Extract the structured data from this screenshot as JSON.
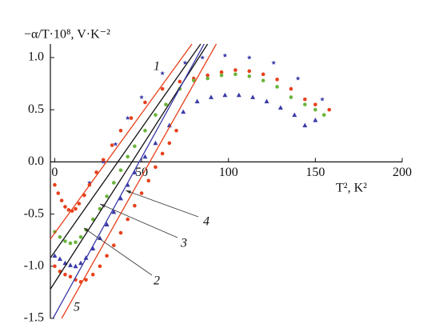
{
  "chart_data": {
    "type": "scatter",
    "y_label": "−α/T·10⁸, V·K⁻²",
    "x_label": "T², K²",
    "xlim": [
      -2.5,
      200
    ],
    "xticks": [
      0,
      50,
      100,
      150,
      200
    ],
    "ylim": [
      -1.5,
      1.13
    ],
    "yticks": [
      -1.5,
      {
        "value": -1,
        "label": "-1.0"
      },
      -0.5,
      {
        "value": 0,
        "label": "0.0"
      },
      0.5,
      {
        "value": 1,
        "label": "1.0"
      }
    ],
    "series": [
      {
        "marker": "star",
        "color": "#3a3aa8",
        "x": [
          20,
          28,
          35,
          42,
          50,
          62,
          75,
          85,
          98,
          112,
          126,
          140,
          154
        ],
        "values": [
          -0.2,
          0.0,
          0.17,
          0.42,
          0.62,
          0.85,
          0.95,
          1.0,
          1.02,
          1.0,
          0.95,
          0.8,
          0.6
        ]
      },
      {
        "marker": "circle",
        "color": "#e8401c",
        "x": [
          0,
          2,
          4,
          6,
          8,
          10,
          12,
          14,
          17,
          20,
          24,
          28,
          33,
          38,
          44,
          52,
          62,
          72,
          80,
          88,
          96,
          104,
          112,
          120,
          128,
          136,
          144,
          150,
          158
        ],
        "values": [
          -0.22,
          -0.3,
          -0.37,
          -0.43,
          -0.46,
          -0.47,
          -0.45,
          -0.4,
          -0.32,
          -0.22,
          -0.1,
          0.02,
          0.16,
          0.3,
          0.42,
          0.57,
          0.7,
          0.77,
          0.8,
          0.83,
          0.86,
          0.88,
          0.87,
          0.84,
          0.79,
          0.7,
          0.6,
          0.55,
          0.5
        ]
      },
      {
        "marker": "circle",
        "color": "#6ab43c",
        "x": [
          0,
          3,
          6,
          9,
          12,
          15,
          18,
          22,
          26,
          30,
          34,
          38,
          42,
          46,
          52,
          58,
          64,
          72,
          80,
          88,
          96,
          104,
          112,
          120,
          128,
          136,
          144,
          150,
          155
        ],
        "values": [
          -0.67,
          -0.72,
          -0.76,
          -0.78,
          -0.77,
          -0.72,
          -0.65,
          -0.55,
          -0.45,
          -0.33,
          -0.2,
          -0.08,
          0.05,
          0.15,
          0.3,
          0.45,
          0.55,
          0.7,
          0.78,
          0.8,
          0.83,
          0.84,
          0.82,
          0.78,
          0.72,
          0.62,
          0.55,
          0.5,
          0.45
        ]
      },
      {
        "marker": "triangle",
        "color": "#3a3aa8",
        "x": [
          0,
          3,
          6,
          9,
          12,
          15,
          18,
          22,
          26,
          30,
          34,
          38,
          42,
          46,
          52,
          58,
          66,
          74,
          82,
          90,
          98,
          106,
          114,
          122,
          130,
          138,
          144,
          150
        ],
        "values": [
          -0.9,
          -0.93,
          -0.97,
          -0.99,
          -1.0,
          -0.97,
          -0.92,
          -0.83,
          -0.73,
          -0.6,
          -0.48,
          -0.35,
          -0.22,
          -0.1,
          0.05,
          0.18,
          0.35,
          0.48,
          0.58,
          0.62,
          0.64,
          0.64,
          0.62,
          0.58,
          0.52,
          0.45,
          0.35,
          0.4
        ]
      },
      {
        "marker": "circle",
        "color": "#e8401c",
        "x": [
          0,
          3,
          6,
          9,
          12,
          15,
          18,
          22,
          26,
          30,
          34,
          38,
          42,
          46,
          50,
          54,
          58,
          62,
          66,
          70
        ],
        "values": [
          -1.0,
          -1.05,
          -1.08,
          -1.1,
          -1.13,
          -1.15,
          -1.13,
          -1.08,
          -1.0,
          -0.9,
          -0.8,
          -0.68,
          -0.55,
          -0.42,
          -0.3,
          -0.18,
          -0.05,
          0.08,
          0.18,
          0.3
        ]
      },
      {
        "marker": "line",
        "color": "#e8401c",
        "x": [
          -2.5,
          79
        ],
        "values": [
          -0.74,
          1.13
        ]
      },
      {
        "marker": "line",
        "color": "#111111",
        "x": [
          -2.5,
          88
        ],
        "values": [
          -1.22,
          1.13
        ]
      },
      {
        "marker": "line",
        "color": "#111111",
        "x": [
          -2.5,
          84
        ],
        "values": [
          -0.92,
          1.13
        ]
      },
      {
        "marker": "line",
        "color": "#3a3aa8",
        "x": [
          -1,
          86
        ],
        "values": [
          -1.5,
          1.13
        ]
      },
      {
        "marker": "line",
        "color": "#e8401c",
        "x": [
          4,
          93
        ],
        "values": [
          -1.5,
          1.13
        ]
      }
    ],
    "annotations": [
      "1",
      "2",
      "3",
      "4",
      "5"
    ]
  }
}
